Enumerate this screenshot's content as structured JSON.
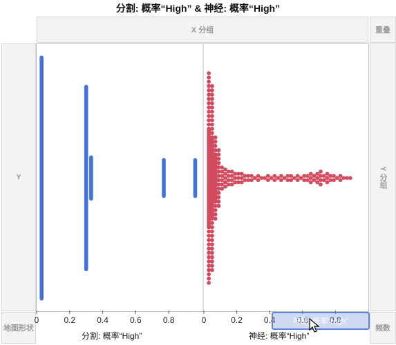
{
  "title": "分割: 概率“High” & 神经: 概率“High”",
  "zones": {
    "x_group": "X 分组",
    "overlay": "重叠",
    "y": "Y",
    "y_group": "Y 分组",
    "map_shape": "地图形状",
    "freq": "频数"
  },
  "drag_preview": "神经: 概率“High”",
  "colors": {
    "split": "#4472d9",
    "neural": "#d14a5e"
  },
  "chart_data": [
    {
      "type": "scatter",
      "xlabel": "分割: 概率“High”",
      "xlim": [
        0,
        1
      ],
      "ticks": [
        "0",
        "0.2",
        "0.4",
        "0.6",
        "0.8"
      ],
      "tick_values": [
        0,
        0.2,
        0.4,
        0.6,
        0.8
      ],
      "note": "split tree probabilities: discrete values shown as dense stacked point columns",
      "columns": [
        {
          "x": 0.03,
          "spread": 0.92
        },
        {
          "x": 0.3,
          "spread": 0.7
        },
        {
          "x": 0.33,
          "spread": 0.17
        },
        {
          "x": 0.77,
          "spread": 0.15
        },
        {
          "x": 0.96,
          "spread": 0.15
        }
      ]
    },
    {
      "type": "scatter",
      "xlabel": "神经: 概率“High”",
      "xlim": [
        0,
        1
      ],
      "ticks": [
        "0",
        "0.2",
        "0.4",
        "0.6",
        "0.8"
      ],
      "tick_values": [
        0,
        0.2,
        0.4,
        0.6,
        0.8
      ],
      "note": "neural probabilities: beeswarm, dense near 0, thinning to the right",
      "density_profile": [
        [
          0.03,
          23
        ],
        [
          0.05,
          19
        ],
        [
          0.07,
          11
        ],
        [
          0.09,
          8
        ],
        [
          0.11,
          6
        ],
        [
          0.13,
          5
        ],
        [
          0.15,
          4
        ],
        [
          0.17,
          4
        ],
        [
          0.19,
          3
        ],
        [
          0.21,
          3
        ],
        [
          0.23,
          3
        ],
        [
          0.25,
          2
        ],
        [
          0.27,
          2
        ],
        [
          0.29,
          2
        ],
        [
          0.31,
          1
        ],
        [
          0.33,
          2
        ],
        [
          0.35,
          1
        ],
        [
          0.37,
          1
        ],
        [
          0.39,
          2
        ],
        [
          0.41,
          1
        ],
        [
          0.43,
          2
        ],
        [
          0.45,
          1
        ],
        [
          0.47,
          2
        ],
        [
          0.49,
          1
        ],
        [
          0.51,
          2
        ],
        [
          0.53,
          2
        ],
        [
          0.55,
          1
        ],
        [
          0.57,
          2
        ],
        [
          0.59,
          1
        ],
        [
          0.61,
          2
        ],
        [
          0.63,
          2
        ],
        [
          0.65,
          3
        ],
        [
          0.67,
          2
        ],
        [
          0.69,
          3
        ],
        [
          0.71,
          4
        ],
        [
          0.73,
          2
        ],
        [
          0.75,
          3
        ],
        [
          0.77,
          2
        ],
        [
          0.79,
          2
        ],
        [
          0.81,
          1
        ],
        [
          0.83,
          2
        ],
        [
          0.85,
          1
        ],
        [
          0.87,
          1
        ],
        [
          0.89,
          1
        ]
      ]
    }
  ]
}
